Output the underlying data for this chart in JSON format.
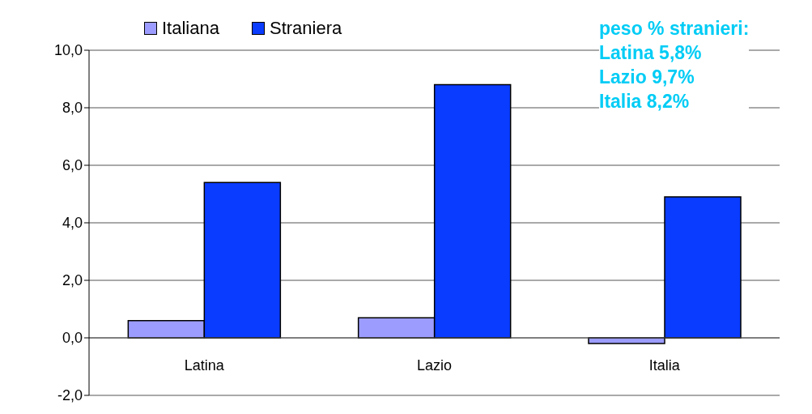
{
  "chart_data": {
    "type": "bar",
    "categories": [
      "Latina",
      "Lazio",
      "Italia"
    ],
    "series": [
      {
        "name": "Italiana",
        "color": "#9c9cff",
        "values": [
          0.6,
          0.7,
          -0.2
        ]
      },
      {
        "name": "Straniera",
        "color": "#0a3cff",
        "values": [
          5.4,
          8.8,
          4.9
        ]
      }
    ],
    "ylim": [
      -2,
      10
    ],
    "yticks": [
      {
        "value": -2,
        "label": "-2,0"
      },
      {
        "value": 0,
        "label": "0,0"
      },
      {
        "value": 2,
        "label": "2,0"
      },
      {
        "value": 4,
        "label": "4,0"
      },
      {
        "value": 6,
        "label": "6,0"
      },
      {
        "value": 8,
        "label": "8,0"
      },
      {
        "value": 10,
        "label": "10,0"
      }
    ],
    "grid": "y",
    "legend": "top",
    "annotations": [
      "peso % stranieri:",
      "Latina 5,8%",
      "Lazio 9,7%",
      "Italia 8,2%"
    ]
  }
}
